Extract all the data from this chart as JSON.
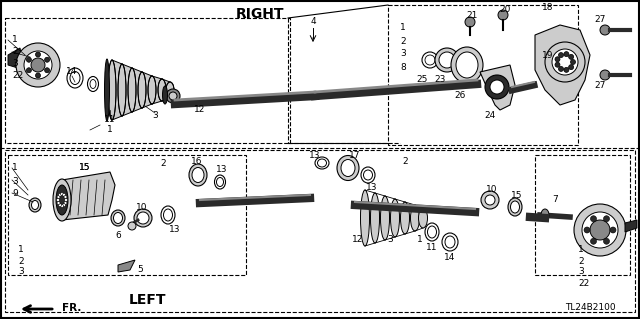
{
  "bg": "#ffffff",
  "fig_w": 6.4,
  "fig_h": 3.19,
  "dpi": 100,
  "label_right": "RIGHT",
  "label_left": "LEFT",
  "code": "TL24B2100",
  "gray_dark": "#2a2a2a",
  "gray_mid": "#888888",
  "gray_light": "#cccccc",
  "gray_lighter": "#e8e8e8",
  "white": "#ffffff",
  "black": "#000000"
}
